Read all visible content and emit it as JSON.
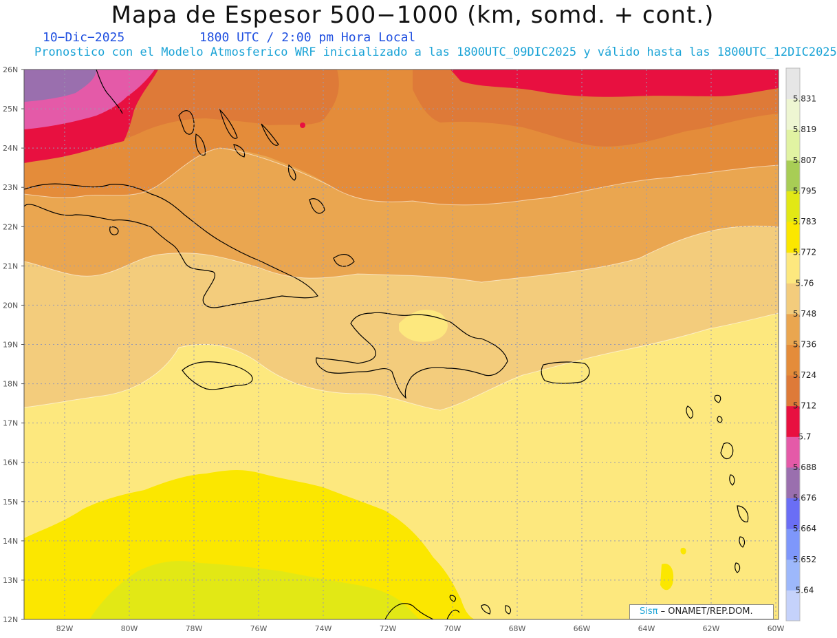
{
  "header": {
    "title": "Mapa de Espesor 500−1000 (km, somd. + cont.)",
    "date": "10−Dic−2025",
    "time": "1800 UTC / 2:00 pm Hora Local",
    "forecast": "Pronostico con el Modelo Atmosferico WRF inicializado a las 1800UTC_09DIC2025 y válido hasta las  1800UTC_12DIC2025"
  },
  "credit": {
    "logo": "Sisπ",
    "org": "– ONAMET/REP.DOM."
  },
  "map": {
    "lat_labels": [
      "26N",
      "25N",
      "24N",
      "23N",
      "22N",
      "21N",
      "20N",
      "19N",
      "18N",
      "17N",
      "16N",
      "15N",
      "14N",
      "13N",
      "12N"
    ],
    "lon_labels": [
      "82W",
      "80W",
      "78W",
      "76W",
      "74W",
      "72W",
      "70W",
      "68W",
      "66W",
      "64W",
      "62W",
      "60W"
    ]
  },
  "colorbar": {
    "levels": [
      "5.64",
      "5.652",
      "5.664",
      "5.676",
      "5.688",
      "5.7",
      "5.712",
      "5.724",
      "5.736",
      "5.748",
      "5.76",
      "5.772",
      "5.783",
      "5.795",
      "5.807",
      "5.819",
      "5.831"
    ],
    "colors": [
      "#c5d2fb",
      "#9db8fb",
      "#7e97fb",
      "#6a6ef5",
      "#9a6fae",
      "#e45aa8",
      "#e81040",
      "#de7a38",
      "#e48c3a",
      "#eaa650",
      "#f3cc7c",
      "#fde87e",
      "#fbe700",
      "#e2e815",
      "#a8cd55",
      "#e1f3a2",
      "#eef6d2",
      "#e6e6e6"
    ]
  }
}
